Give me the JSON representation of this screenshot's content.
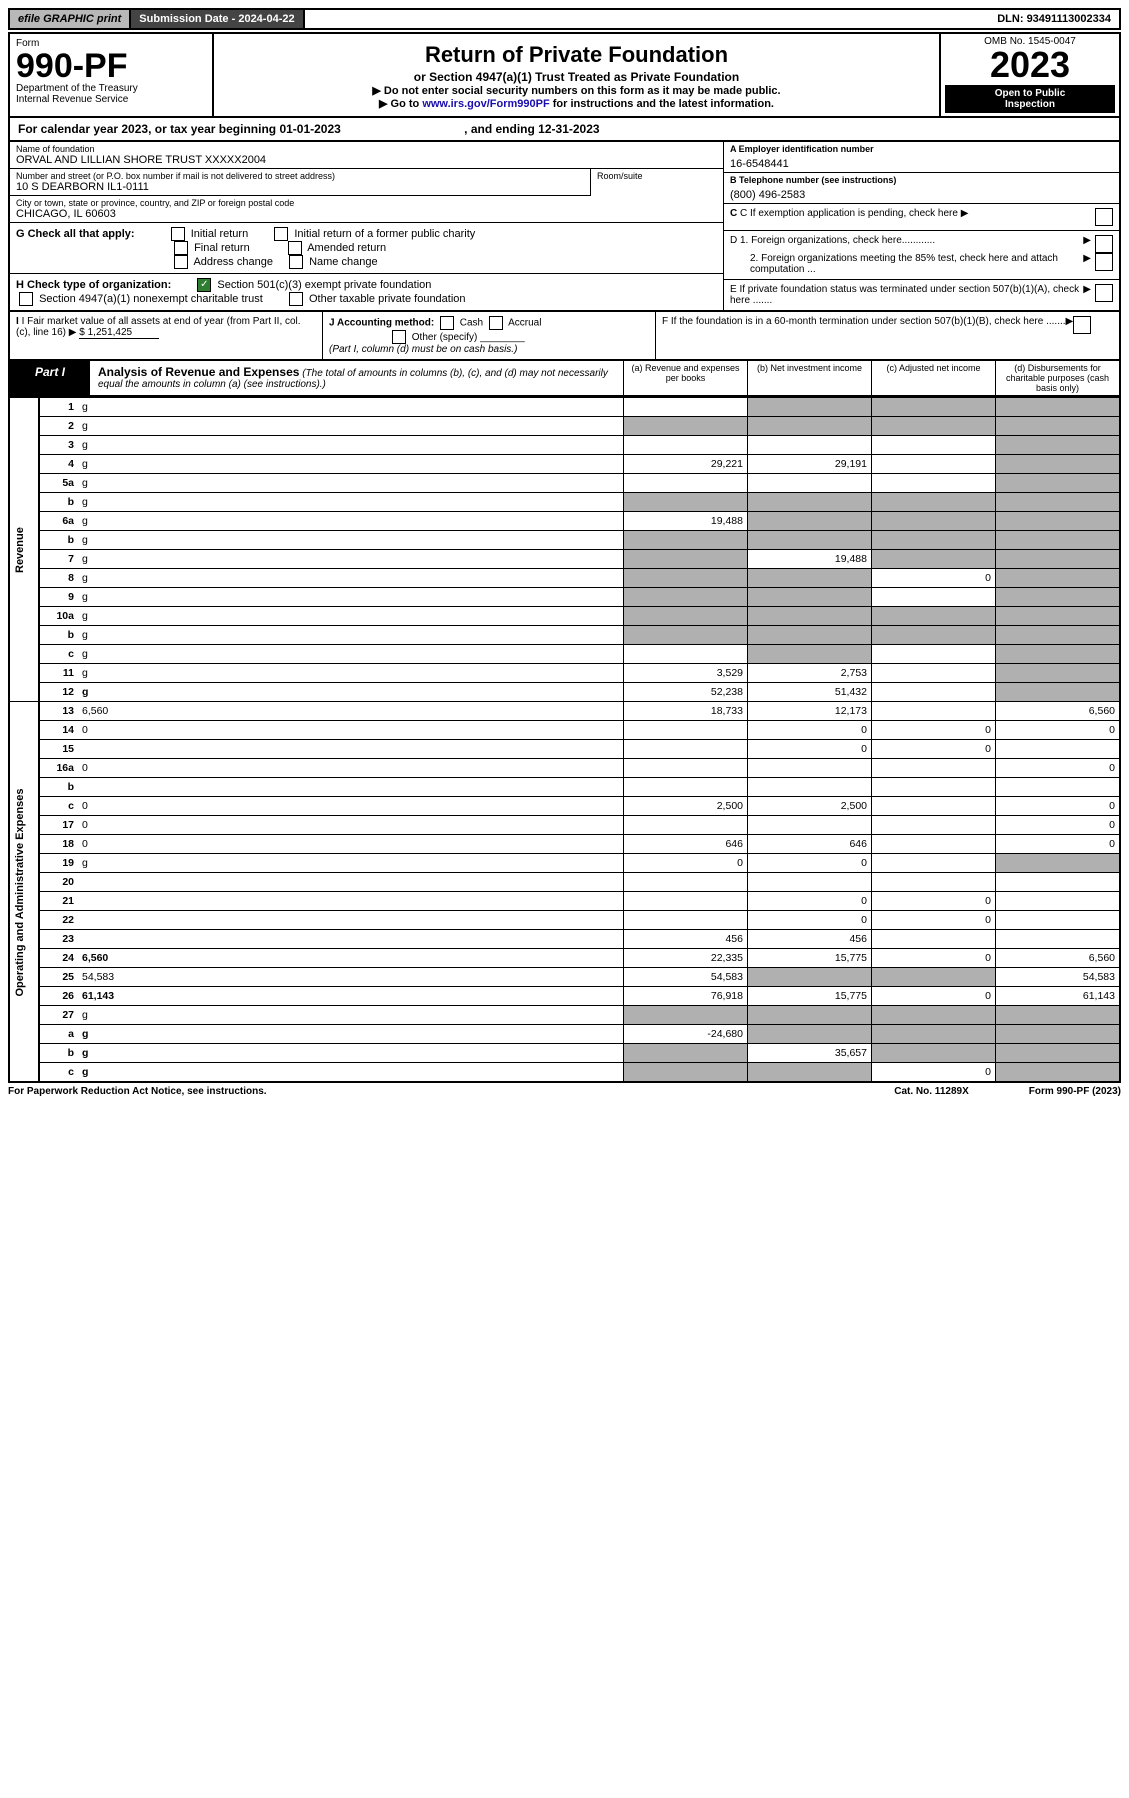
{
  "topbar": {
    "efile": "efile GRAPHIC print",
    "subdate_label": "Submission Date - ",
    "subdate": "2024-04-22",
    "dln_label": "DLN: ",
    "dln": "93491113002334"
  },
  "header": {
    "form_label": "Form",
    "form_no": "990-PF",
    "dept": "Department of the Treasury",
    "irs": "Internal Revenue Service",
    "title": "Return of Private Foundation",
    "subtitle": "or Section 4947(a)(1) Trust Treated as Private Foundation",
    "instr1": "▶ Do not enter social security numbers on this form as it may be made public.",
    "instr2_pre": "▶ Go to ",
    "instr2_link": "www.irs.gov/Form990PF",
    "instr2_post": " for instructions and the latest information.",
    "omb": "OMB No. 1545-0047",
    "year": "2023",
    "open": "Open to Public",
    "insp": "Inspection"
  },
  "calyear": {
    "text": "For calendar year 2023, or tax year beginning 01-01-2023",
    "ending": ", and ending 12-31-2023"
  },
  "entity": {
    "name_label": "Name of foundation",
    "name": "ORVAL AND LILLIAN SHORE TRUST XXXXX2004",
    "addr_label": "Number and street (or P.O. box number if mail is not delivered to street address)",
    "addr": "10 S DEARBORN IL1-0111",
    "room_label": "Room/suite",
    "city_label": "City or town, state or province, country, and ZIP or foreign postal code",
    "city": "CHICAGO, IL  60603",
    "ein_label": "A Employer identification number",
    "ein": "16-6548441",
    "phone_label": "B Telephone number (see instructions)",
    "phone": "(800) 496-2583",
    "c_label": "C If exemption application is pending, check here",
    "d1": "D 1. Foreign organizations, check here............",
    "d2": "2. Foreign organizations meeting the 85% test, check here and attach computation ...",
    "e": "E  If private foundation status was terminated under section 507(b)(1)(A), check here .......",
    "f": "F  If the foundation is in a 60-month termination under section 507(b)(1)(B), check here .......",
    "g_label": "G Check all that apply:",
    "g_opts": [
      "Initial return",
      "Initial return of a former public charity",
      "Final return",
      "Amended return",
      "Address change",
      "Name change"
    ],
    "h_label": "H Check type of organization:",
    "h_opt1": "Section 501(c)(3) exempt private foundation",
    "h_opt2": "Section 4947(a)(1) nonexempt charitable trust",
    "h_opt3": "Other taxable private foundation",
    "i_label": "I Fair market value of all assets at end of year (from Part II, col. (c), line 16)",
    "i_val": "$  1,251,425",
    "j_label": "J Accounting method:",
    "j_opts": [
      "Cash",
      "Accrual"
    ],
    "j_other": "Other (specify)",
    "j_note": "(Part I, column (d) must be on cash basis.)"
  },
  "part1": {
    "label": "Part I",
    "title": "Analysis of Revenue and Expenses",
    "title_note": "(The total of amounts in columns (b), (c), and (d) may not necessarily equal the amounts in column (a) (see instructions).)",
    "cols": {
      "a": "(a) Revenue and expenses per books",
      "b": "(b) Net investment income",
      "c": "(c) Adjusted net income",
      "d": "(d) Disbursements for charitable purposes (cash basis only)"
    }
  },
  "sections": {
    "revenue": "Revenue",
    "expenses": "Operating and Administrative Expenses"
  },
  "rows": [
    {
      "n": "1",
      "d": "g",
      "a": "",
      "b": "g",
      "c": "g"
    },
    {
      "n": "2",
      "d": "g",
      "a": "g",
      "b": "g",
      "c": "g"
    },
    {
      "n": "3",
      "d": "g",
      "a": "",
      "b": "",
      "c": ""
    },
    {
      "n": "4",
      "d": "g",
      "a": "29,221",
      "b": "29,191",
      "c": ""
    },
    {
      "n": "5a",
      "d": "g",
      "a": "",
      "b": "",
      "c": ""
    },
    {
      "n": "b",
      "d": "g",
      "a": "g",
      "b": "g",
      "c": "g"
    },
    {
      "n": "6a",
      "d": "g",
      "a": "19,488",
      "b": "g",
      "c": "g"
    },
    {
      "n": "b",
      "d": "g",
      "a": "g",
      "b": "g",
      "c": "g"
    },
    {
      "n": "7",
      "d": "g",
      "a": "g",
      "b": "19,488",
      "c": "g"
    },
    {
      "n": "8",
      "d": "g",
      "a": "g",
      "b": "g",
      "c": "0"
    },
    {
      "n": "9",
      "d": "g",
      "a": "g",
      "b": "g",
      "c": ""
    },
    {
      "n": "10a",
      "d": "g",
      "a": "g",
      "b": "g",
      "c": "g"
    },
    {
      "n": "b",
      "d": "g",
      "a": "g",
      "b": "g",
      "c": "g"
    },
    {
      "n": "c",
      "d": "g",
      "a": "",
      "b": "g",
      "c": ""
    },
    {
      "n": "11",
      "d": "g",
      "a": "3,529",
      "b": "2,753",
      "c": ""
    },
    {
      "n": "12",
      "d": "g",
      "a": "52,238",
      "b": "51,432",
      "c": "",
      "bold": true
    },
    {
      "n": "13",
      "d": "6,560",
      "a": "18,733",
      "b": "12,173",
      "c": ""
    },
    {
      "n": "14",
      "d": "0",
      "a": "",
      "b": "0",
      "c": "0"
    },
    {
      "n": "15",
      "d": "",
      "a": "",
      "b": "0",
      "c": "0"
    },
    {
      "n": "16a",
      "d": "0",
      "a": "",
      "b": "",
      "c": ""
    },
    {
      "n": "b",
      "d": "",
      "a": "",
      "b": "",
      "c": ""
    },
    {
      "n": "c",
      "d": "0",
      "a": "2,500",
      "b": "2,500",
      "c": ""
    },
    {
      "n": "17",
      "d": "0",
      "a": "",
      "b": "",
      "c": ""
    },
    {
      "n": "18",
      "d": "0",
      "a": "646",
      "b": "646",
      "c": ""
    },
    {
      "n": "19",
      "d": "g",
      "a": "0",
      "b": "0",
      "c": ""
    },
    {
      "n": "20",
      "d": "",
      "a": "",
      "b": "",
      "c": ""
    },
    {
      "n": "21",
      "d": "",
      "a": "",
      "b": "0",
      "c": "0"
    },
    {
      "n": "22",
      "d": "",
      "a": "",
      "b": "0",
      "c": "0"
    },
    {
      "n": "23",
      "d": "",
      "a": "456",
      "b": "456",
      "c": ""
    },
    {
      "n": "24",
      "d": "6,560",
      "a": "22,335",
      "b": "15,775",
      "c": "0",
      "bold": true
    },
    {
      "n": "25",
      "d": "54,583",
      "a": "54,583",
      "b": "g",
      "c": "g"
    },
    {
      "n": "26",
      "d": "61,143",
      "a": "76,918",
      "b": "15,775",
      "c": "0",
      "bold": true
    },
    {
      "n": "27",
      "d": "g",
      "a": "g",
      "b": "g",
      "c": "g"
    },
    {
      "n": "a",
      "d": "g",
      "a": "-24,680",
      "b": "g",
      "c": "g",
      "bold": true
    },
    {
      "n": "b",
      "d": "g",
      "a": "g",
      "b": "35,657",
      "c": "g",
      "bold": true
    },
    {
      "n": "c",
      "d": "g",
      "a": "g",
      "b": "g",
      "c": "0",
      "bold": true
    }
  ],
  "footer": {
    "left": "For Paperwork Reduction Act Notice, see instructions.",
    "mid": "Cat. No. 11289X",
    "right": "Form 990-PF (2023)"
  }
}
